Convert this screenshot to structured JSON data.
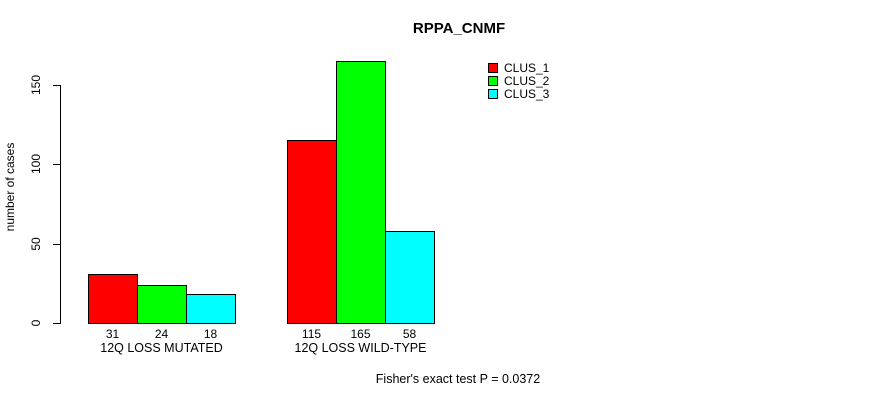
{
  "chart_data": {
    "type": "bar",
    "title": "RPPA_CNMF",
    "ylabel": "number of cases",
    "xlabel": "",
    "categories": [
      "12Q LOSS MUTATED",
      "12Q LOSS WILD-TYPE"
    ],
    "series": [
      {
        "name": "CLUS_1",
        "color": "#ff0000",
        "values": [
          31,
          115
        ]
      },
      {
        "name": "CLUS_2",
        "color": "#00ff00",
        "values": [
          24,
          165
        ]
      },
      {
        "name": "CLUS_3",
        "color": "#00ffff",
        "values": [
          18,
          58
        ]
      }
    ],
    "yticks": [
      0,
      50,
      100,
      150
    ],
    "ylim": [
      0,
      170
    ],
    "grid": false,
    "legend_position": "top-right",
    "bar_value_labels_shown": true,
    "annotation": "Fisher's exact test P = 0.0372"
  }
}
